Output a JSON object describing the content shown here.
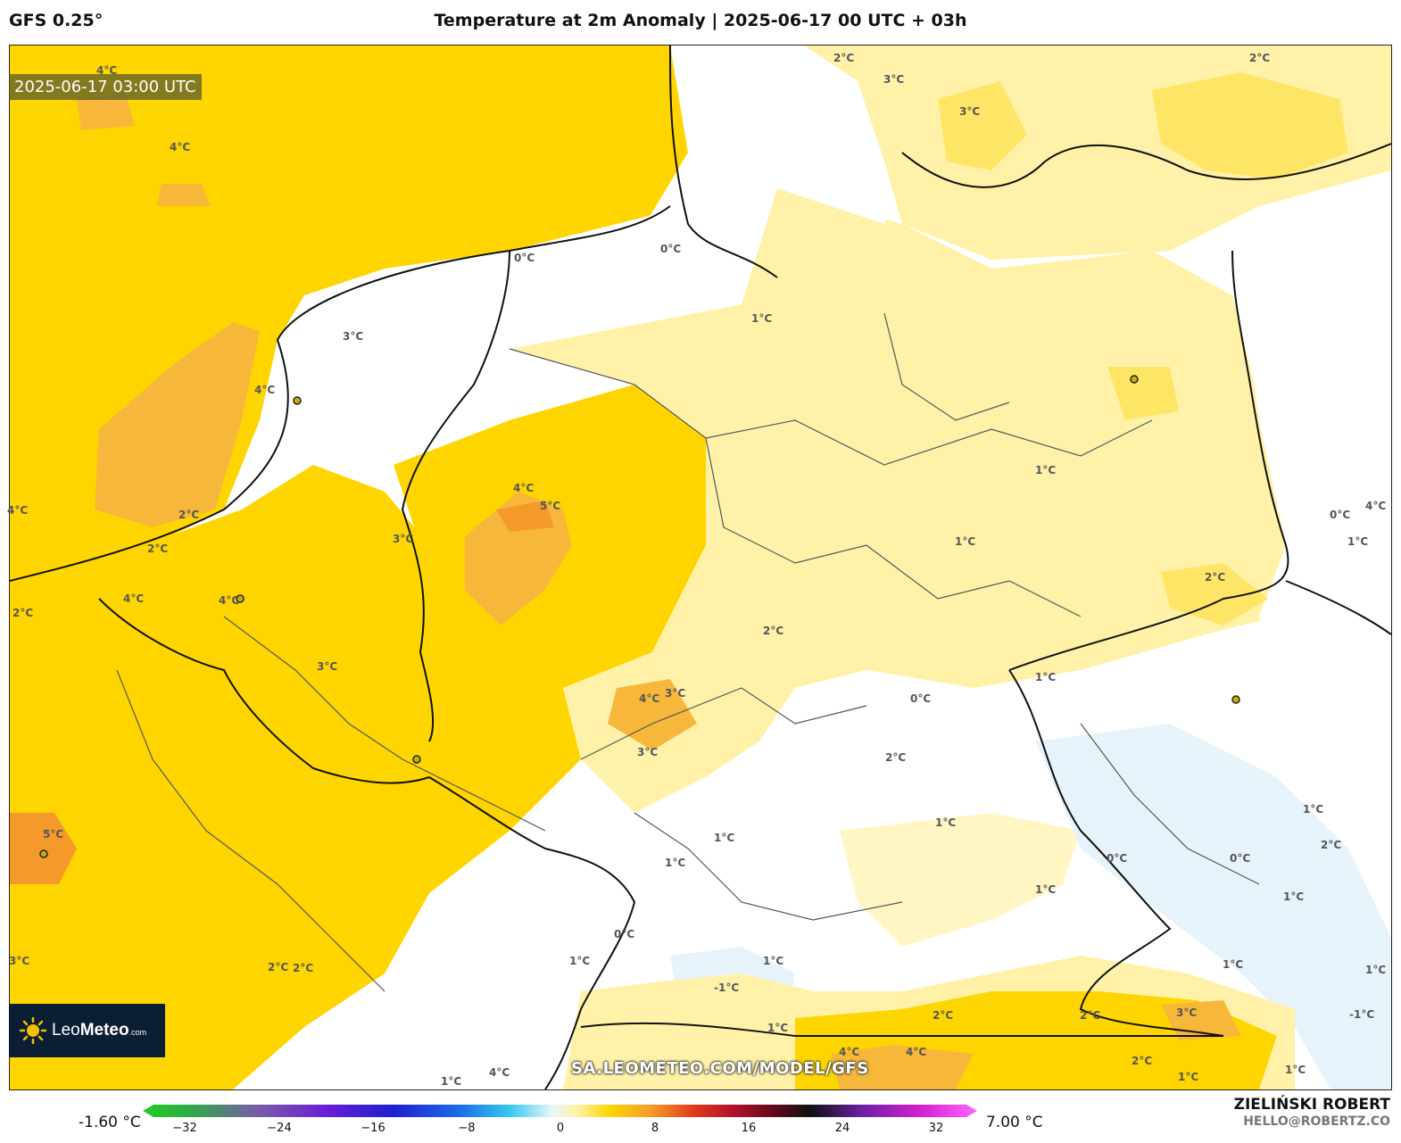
{
  "header": {
    "model": "GFS 0.25°",
    "title": "Temperature at 2m Anomaly | 2025-06-17 00 UTC + 03h"
  },
  "map": {
    "valid_time": "2025-06-17 03:00 UTC",
    "watermark": "SA.LEOMETEO.COM/MODEL/GFS",
    "contour_labels": [
      "4°C",
      "4°C",
      "2°C",
      "3°C",
      "3°C",
      "2°C",
      "0°C",
      "0°C",
      "1°C",
      "3°C",
      "4°C",
      "2°C",
      "4°C",
      "5°C",
      "3°C",
      "2°C",
      "1°C",
      "4°C",
      "4°C",
      "2°C",
      "3°C",
      "1°C",
      "2°C",
      "2°C",
      "1°C",
      "0°C",
      "4°C",
      "3°C",
      "3°C",
      "2°C",
      "1°C",
      "1°C",
      "1°C",
      "1°C",
      "0°C",
      "0°C",
      "1°C",
      "1°C",
      "0°C",
      "1°C",
      "1°C",
      "-1°C",
      "1°C",
      "2°C",
      "2°C",
      "2°C",
      "2°C",
      "4°C",
      "4°C",
      "4°C",
      "3°C",
      "2°C",
      "1°C",
      "1°C",
      "1°C",
      "1°C",
      "-1°C",
      "0°C",
      "4°C",
      "5°C",
      "4°C",
      "3°C",
      "2°C",
      "1°C",
      "1°C"
    ],
    "colors": {
      "anom_0_1": "#fff6c4",
      "anom_1_2": "#fff2a8",
      "anom_2_3": "#ffe566",
      "anom_3_4": "#ffd500",
      "anom_4_5": "#f7b73b",
      "anom_5_6": "#f59a2a",
      "anom_neg": "#e6f3fb",
      "border": "#111111",
      "admin": "#555555"
    }
  },
  "logo": {
    "brand_a": "Leo",
    "brand_b": "Meteo",
    "suffix": ".com"
  },
  "colorbar": {
    "min_label": "-1.60 °C",
    "max_label": "7.00 °C",
    "ticks": [
      "−32",
      "−24",
      "−16",
      "−8",
      "0",
      "8",
      "16",
      "24",
      "32"
    ]
  },
  "credits": {
    "author": "ZIELIŃSKI ROBERT",
    "email": "HELLO@ROBERTZ.CO"
  }
}
